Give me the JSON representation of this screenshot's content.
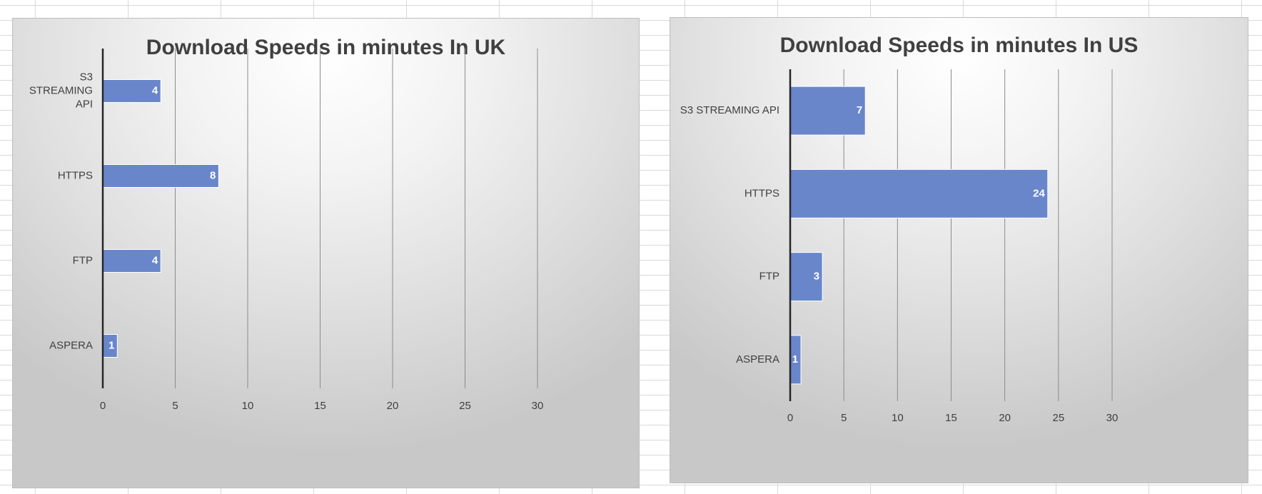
{
  "chart_data": [
    {
      "type": "bar",
      "orientation": "horizontal",
      "title": "Download Speeds in minutes In UK",
      "categories": [
        "S3 STREAMING API",
        "HTTPS",
        "FTP",
        "ASPERA"
      ],
      "category_label_lines": [
        [
          "S3",
          "STREAMING",
          "API"
        ],
        [
          "HTTPS"
        ],
        [
          "FTP"
        ],
        [
          "ASPERA"
        ]
      ],
      "values": [
        4,
        8,
        4,
        1
      ],
      "xlim": [
        0,
        30
      ],
      "xticks": [
        0,
        5,
        10,
        15,
        20,
        25,
        30
      ],
      "xlabel": "",
      "ylabel": "",
      "grid": "vertical",
      "legend": "none",
      "bar_color": "#6986cb",
      "data_labels": true
    },
    {
      "type": "bar",
      "orientation": "horizontal",
      "title": "Download Speeds in minutes In US",
      "categories": [
        "S3 STREAMING API",
        "HTTPS",
        "FTP",
        "ASPERA"
      ],
      "category_label_lines": [
        [
          "S3 STREAMING API"
        ],
        [
          "HTTPS"
        ],
        [
          "FTP"
        ],
        [
          "ASPERA"
        ]
      ],
      "values": [
        7,
        24,
        3,
        1
      ],
      "xlim": [
        0,
        30
      ],
      "xticks": [
        0,
        5,
        10,
        15,
        20,
        25,
        30
      ],
      "xlabel": "",
      "ylabel": "",
      "grid": "vertical",
      "legend": "none",
      "bar_color": "#6986cb",
      "data_labels": true
    }
  ]
}
